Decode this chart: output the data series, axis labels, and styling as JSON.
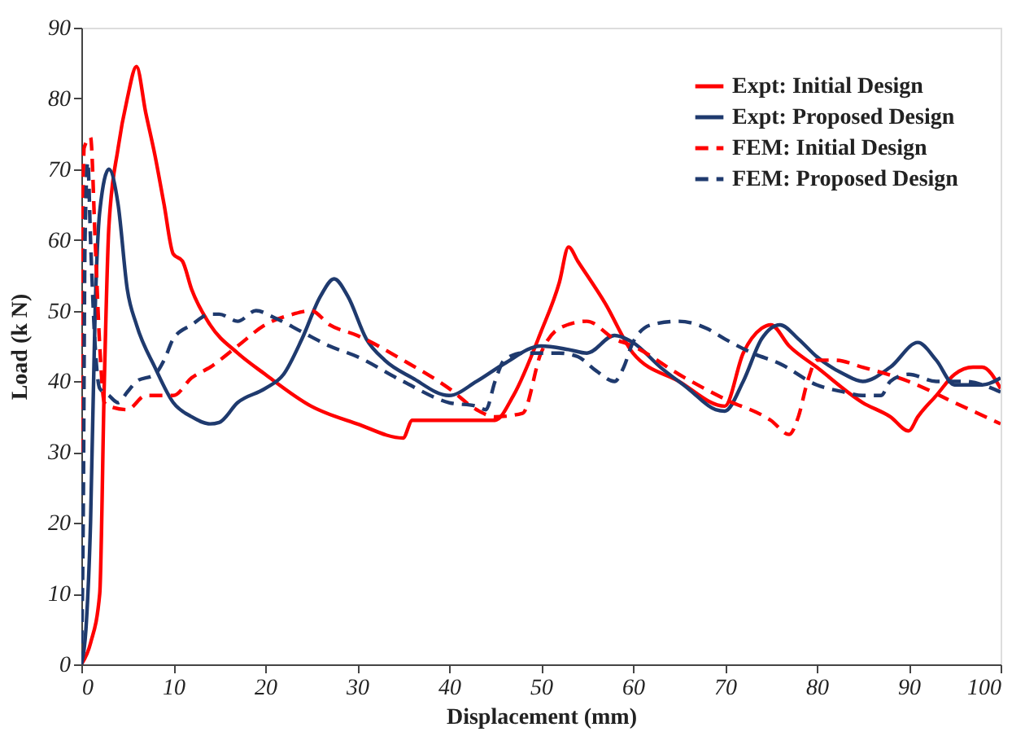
{
  "chart_data": {
    "type": "line",
    "xlabel": "Displacement (mm)",
    "ylabel": "Load (k N)",
    "xlim": [
      0,
      100
    ],
    "ylim": [
      0,
      90
    ],
    "xticks": [
      0,
      10,
      20,
      30,
      40,
      50,
      60,
      70,
      80,
      90,
      100
    ],
    "yticks": [
      0,
      10,
      20,
      30,
      40,
      50,
      60,
      70,
      80,
      90
    ],
    "grid": false,
    "legend": "top right",
    "marker": "none",
    "series": [
      {
        "name": "Expt: Initial Design",
        "color": "#ff0000",
        "line_style": "solid",
        "x": [
          0,
          1,
          2,
          2.5,
          3,
          4,
          5,
          6,
          7,
          8,
          9,
          10,
          11,
          12,
          14,
          17,
          20,
          25,
          30,
          35,
          36,
          40,
          45,
          47,
          50,
          52,
          53,
          54,
          57,
          60,
          65,
          70,
          72,
          74,
          75,
          77,
          80,
          85,
          88,
          90,
          91,
          93,
          95,
          97,
          98,
          100
        ],
        "values": [
          0,
          3,
          10,
          40,
          62,
          73,
          80,
          84.5,
          78,
          72,
          65,
          58,
          57,
          53,
          48,
          44,
          41,
          36.5,
          34,
          32,
          34.5,
          34.5,
          34.5,
          38,
          47,
          54,
          59,
          57,
          51,
          44,
          40,
          36.5,
          44,
          47.5,
          48,
          45,
          42,
          37,
          35,
          33,
          35,
          38,
          41,
          42,
          42,
          39
        ]
      },
      {
        "name": "Expt: Proposed Design",
        "color": "#1f3a6e",
        "line_style": "solid",
        "x": [
          0,
          0.5,
          1,
          1.5,
          2,
          3,
          4,
          5,
          6,
          8,
          10,
          12,
          14,
          15,
          17,
          20,
          22,
          24,
          26,
          27.5,
          29,
          31,
          33,
          36,
          40,
          43,
          46,
          50,
          53,
          55,
          58,
          60,
          63,
          66,
          69,
          70,
          72,
          74,
          76,
          78,
          80,
          83,
          85,
          88,
          91,
          93,
          95,
          98,
          100
        ],
        "values": [
          0,
          5,
          20,
          50,
          64,
          70,
          65,
          53,
          48,
          42,
          37,
          35,
          34,
          34.2,
          37,
          39,
          41,
          46,
          52,
          54.5,
          52,
          46,
          43,
          40.5,
          38,
          40,
          42.5,
          45,
          44.5,
          44,
          46.5,
          45.5,
          42,
          39,
          36,
          35.8,
          40,
          46,
          48,
          46,
          43.5,
          41,
          40,
          42,
          45.5,
          43,
          39.5,
          39.5,
          40.5
        ]
      },
      {
        "name": "FEM: Initial Design",
        "color": "#ff0000",
        "line_style": "dashed",
        "x": [
          0,
          0.3,
          1,
          1.5,
          2,
          2.5,
          3,
          5,
          7,
          9,
          10,
          12,
          14,
          17,
          20,
          23,
          25,
          27,
          30,
          35,
          40,
          43,
          45,
          48,
          50,
          52,
          55,
          58,
          60,
          65,
          70,
          75,
          77,
          78,
          79,
          80,
          82,
          85,
          90,
          95,
          100
        ],
        "values": [
          30,
          73,
          74.5,
          60,
          45,
          37,
          36.5,
          36,
          38,
          38,
          38,
          40.5,
          42,
          45,
          48,
          49.5,
          50,
          48,
          46.5,
          43,
          39,
          36,
          35,
          35.5,
          44,
          47.5,
          48.5,
          46,
          45,
          41,
          37.5,
          34.5,
          32.5,
          35,
          40,
          43,
          43,
          42,
          40,
          37,
          34
        ]
      },
      {
        "name": "FEM: Proposed Design",
        "color": "#1f3a6e",
        "line_style": "dashed",
        "x": [
          0,
          0.2,
          0.4,
          0.7,
          1,
          1.5,
          2,
          3,
          4,
          5,
          6,
          8,
          9,
          10,
          12,
          14,
          15,
          17,
          19,
          21,
          24,
          27,
          30,
          35,
          40,
          43,
          44,
          45,
          46,
          48,
          50,
          52,
          54,
          56,
          58,
          59,
          60,
          62,
          65,
          68,
          70,
          73,
          76,
          80,
          83,
          85,
          87,
          88,
          90,
          93,
          96,
          100
        ],
        "values": [
          0,
          20,
          60,
          71,
          60,
          45,
          39,
          38,
          37,
          38.5,
          40,
          41,
          43,
          46,
          48,
          49.5,
          49.5,
          48.5,
          50,
          49,
          47,
          45,
          43.5,
          40,
          37,
          36.5,
          36,
          40,
          43,
          44,
          44,
          44,
          43.5,
          41.5,
          40,
          42,
          45.5,
          48,
          48.5,
          47.5,
          46,
          44,
          42.5,
          39.5,
          38.5,
          38,
          38,
          40,
          41,
          40,
          40,
          38.5
        ]
      }
    ]
  }
}
